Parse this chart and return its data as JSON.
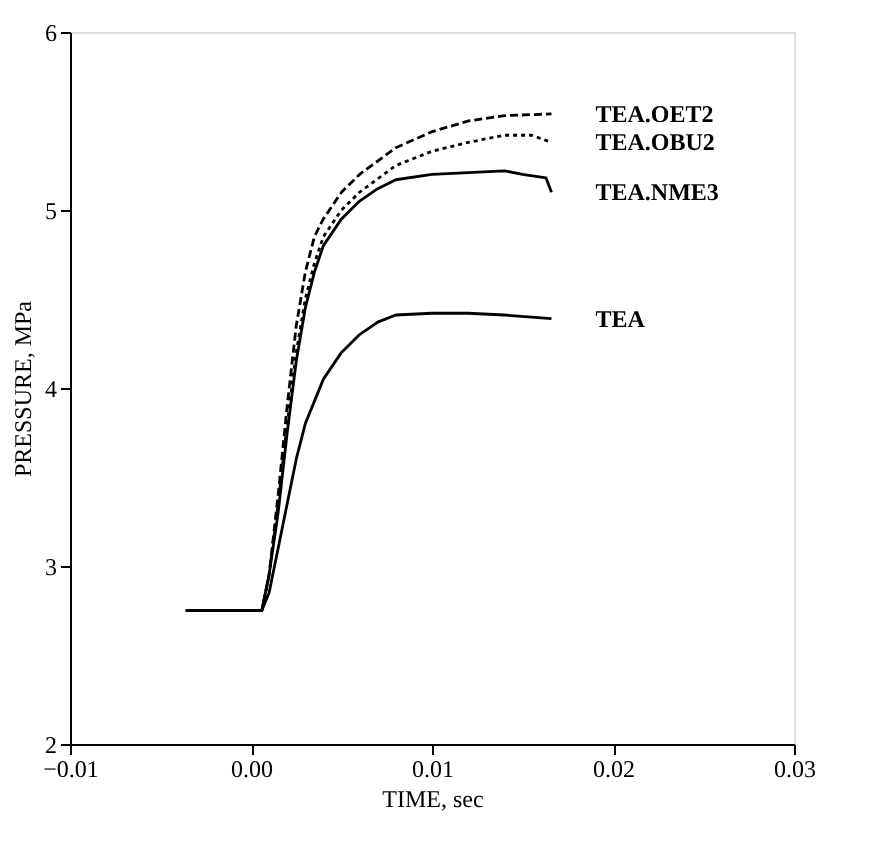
{
  "chart_data": {
    "type": "line",
    "xlabel": "TIME, sec",
    "ylabel": "PRESSURE, MPa",
    "xlim": [
      -0.01,
      0.03
    ],
    "ylim": [
      2,
      6
    ],
    "xticks": [
      {
        "value": -0.01,
        "label": "−0.01"
      },
      {
        "value": 0,
        "label": "0.00"
      },
      {
        "value": 0.01,
        "label": "0.01"
      },
      {
        "value": 0.02,
        "label": "0.02"
      },
      {
        "value": 0.03,
        "label": "0.03"
      }
    ],
    "yticks": [
      2,
      3,
      4,
      5,
      6
    ],
    "grid": false,
    "legend": false,
    "series": [
      {
        "name": "TEA.OET2",
        "color": "#000000",
        "line_style": "dashed",
        "x": [
          -0.0036,
          0.0006,
          0.001,
          0.0015,
          0.002,
          0.0025,
          0.003,
          0.0035,
          0.004,
          0.005,
          0.006,
          0.008,
          0.01,
          0.012,
          0.014,
          0.0166
        ],
        "values": [
          2.75,
          2.75,
          2.95,
          3.4,
          3.9,
          4.35,
          4.65,
          4.85,
          4.95,
          5.1,
          5.2,
          5.35,
          5.44,
          5.5,
          5.53,
          5.54
        ]
      },
      {
        "name": "TEA.OBU2",
        "color": "#000000",
        "line_style": "dotted",
        "x": [
          -0.0036,
          0.0006,
          0.001,
          0.0015,
          0.002,
          0.0025,
          0.003,
          0.0035,
          0.004,
          0.005,
          0.006,
          0.008,
          0.01,
          0.012,
          0.014,
          0.0155,
          0.0166
        ],
        "values": [
          2.75,
          2.75,
          2.95,
          3.35,
          3.8,
          4.2,
          4.5,
          4.7,
          4.85,
          5.0,
          5.1,
          5.25,
          5.33,
          5.38,
          5.42,
          5.42,
          5.38
        ]
      },
      {
        "name": "TEA.NME3",
        "color": "#000000",
        "line_style": "solid",
        "x": [
          -0.0036,
          0.0006,
          0.001,
          0.0015,
          0.002,
          0.0025,
          0.003,
          0.0035,
          0.004,
          0.005,
          0.006,
          0.007,
          0.008,
          0.01,
          0.012,
          0.014,
          0.015,
          0.0163,
          0.0166
        ],
        "values": [
          2.75,
          2.75,
          2.95,
          3.3,
          3.75,
          4.15,
          4.45,
          4.65,
          4.8,
          4.95,
          5.05,
          5.12,
          5.17,
          5.2,
          5.21,
          5.22,
          5.2,
          5.18,
          5.1
        ]
      },
      {
        "name": "TEA",
        "color": "#000000",
        "line_style": "solid",
        "x": [
          -0.0036,
          0.0006,
          0.001,
          0.0015,
          0.002,
          0.0025,
          0.003,
          0.004,
          0.005,
          0.006,
          0.007,
          0.008,
          0.01,
          0.012,
          0.014,
          0.0166
        ],
        "values": [
          2.75,
          2.75,
          2.85,
          3.1,
          3.35,
          3.6,
          3.8,
          4.05,
          4.2,
          4.3,
          4.37,
          4.41,
          4.42,
          4.42,
          4.41,
          4.39
        ]
      }
    ]
  }
}
